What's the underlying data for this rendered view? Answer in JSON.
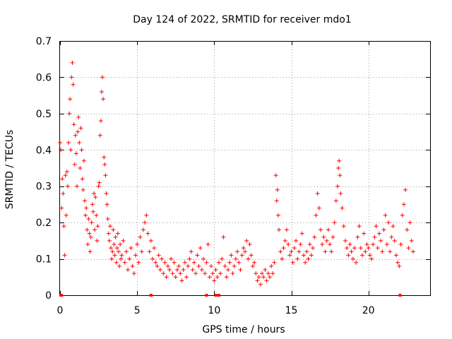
{
  "chart_data": {
    "type": "scatter",
    "title": "Day 124 of 2022, SRMTID for receiver mdo1",
    "xlabel": "GPS time / hours",
    "ylabel": "SRMTID / TECUs",
    "xlim": [
      0,
      24
    ],
    "ylim": [
      0,
      0.7
    ],
    "xticks": [
      0,
      5,
      10,
      15,
      20
    ],
    "yticks": [
      0,
      0.1,
      0.2,
      0.3,
      0.4,
      0.5,
      0.6,
      0.7
    ],
    "x_tick_labels": [
      "0",
      "5",
      "10",
      "15",
      "20"
    ],
    "y_tick_labels": [
      "0",
      "0.1",
      "0.2",
      "0.3",
      "0.4",
      "0.5",
      "0.6",
      "0.7"
    ],
    "grid": true,
    "marker": "plus",
    "marker_color": "#ff0000",
    "zero_points": [
      0.05,
      0.1,
      5.9,
      9.5,
      10.1,
      10.3,
      22.05
    ],
    "series": [
      {
        "name": "SRMTID",
        "points": [
          [
            0.0,
            0.42
          ],
          [
            0.05,
            0.4
          ],
          [
            0.1,
            0.24
          ],
          [
            0.15,
            0.32
          ],
          [
            0.2,
            0.28
          ],
          [
            0.25,
            0.19
          ],
          [
            0.3,
            0.11
          ],
          [
            0.35,
            0.33
          ],
          [
            0.4,
            0.22
          ],
          [
            0.45,
            0.34
          ],
          [
            0.5,
            0.3
          ],
          [
            0.55,
            0.42
          ],
          [
            0.6,
            0.5
          ],
          [
            0.65,
            0.54
          ],
          [
            0.7,
            0.4
          ],
          [
            0.75,
            0.6
          ],
          [
            0.8,
            0.64
          ],
          [
            0.85,
            0.58
          ],
          [
            0.9,
            0.47
          ],
          [
            0.95,
            0.36
          ],
          [
            1.0,
            0.44
          ],
          [
            1.05,
            0.39
          ],
          [
            1.1,
            0.3
          ],
          [
            1.15,
            0.45
          ],
          [
            1.2,
            0.49
          ],
          [
            1.25,
            0.42
          ],
          [
            1.3,
            0.35
          ],
          [
            1.35,
            0.46
          ],
          [
            1.4,
            0.4
          ],
          [
            1.45,
            0.32
          ],
          [
            1.5,
            0.29
          ],
          [
            1.55,
            0.37
          ],
          [
            1.6,
            0.26
          ],
          [
            1.65,
            0.22
          ],
          [
            1.7,
            0.24
          ],
          [
            1.75,
            0.18
          ],
          [
            1.8,
            0.14
          ],
          [
            1.85,
            0.21
          ],
          [
            1.9,
            0.17
          ],
          [
            1.95,
            0.12
          ],
          [
            2.0,
            0.16
          ],
          [
            2.05,
            0.2
          ],
          [
            2.1,
            0.25
          ],
          [
            2.15,
            0.23
          ],
          [
            2.2,
            0.28
          ],
          [
            2.25,
            0.18
          ],
          [
            2.3,
            0.27
          ],
          [
            2.35,
            0.22
          ],
          [
            2.4,
            0.15
          ],
          [
            2.45,
            0.19
          ],
          [
            2.5,
            0.3
          ],
          [
            2.55,
            0.31
          ],
          [
            2.6,
            0.44
          ],
          [
            2.65,
            0.48
          ],
          [
            2.7,
            0.56
          ],
          [
            2.75,
            0.6
          ],
          [
            2.8,
            0.54
          ],
          [
            2.85,
            0.38
          ],
          [
            2.9,
            0.36
          ],
          [
            2.95,
            0.33
          ],
          [
            3.0,
            0.28
          ],
          [
            3.05,
            0.25
          ],
          [
            3.1,
            0.21
          ],
          [
            3.15,
            0.17
          ],
          [
            3.2,
            0.15
          ],
          [
            3.25,
            0.19
          ],
          [
            3.3,
            0.13
          ],
          [
            3.35,
            0.1
          ],
          [
            3.4,
            0.12
          ],
          [
            3.45,
            0.18
          ],
          [
            3.5,
            0.14
          ],
          [
            3.55,
            0.11
          ],
          [
            3.6,
            0.16
          ],
          [
            3.65,
            0.09
          ],
          [
            3.7,
            0.13
          ],
          [
            3.75,
            0.17
          ],
          [
            3.8,
            0.12
          ],
          [
            3.85,
            0.08
          ],
          [
            3.9,
            0.14
          ],
          [
            3.95,
            0.1
          ],
          [
            4.0,
            0.11
          ],
          [
            4.1,
            0.15
          ],
          [
            4.2,
            0.09
          ],
          [
            4.3,
            0.12
          ],
          [
            4.4,
            0.07
          ],
          [
            4.5,
            0.1
          ],
          [
            4.6,
            0.13
          ],
          [
            4.7,
            0.08
          ],
          [
            4.8,
            0.06
          ],
          [
            4.9,
            0.11
          ],
          [
            5.0,
            0.14
          ],
          [
            5.1,
            0.09
          ],
          [
            5.2,
            0.16
          ],
          [
            5.3,
            0.12
          ],
          [
            5.4,
            0.18
          ],
          [
            5.5,
            0.2
          ],
          [
            5.6,
            0.22
          ],
          [
            5.7,
            0.17
          ],
          [
            5.8,
            0.12
          ],
          [
            5.9,
            0.15
          ],
          [
            6.0,
            0.1
          ],
          [
            6.1,
            0.13
          ],
          [
            6.2,
            0.09
          ],
          [
            6.3,
            0.08
          ],
          [
            6.4,
            0.11
          ],
          [
            6.5,
            0.07
          ],
          [
            6.6,
            0.1
          ],
          [
            6.7,
            0.06
          ],
          [
            6.8,
            0.09
          ],
          [
            6.9,
            0.05
          ],
          [
            7.0,
            0.08
          ],
          [
            7.1,
            0.07
          ],
          [
            7.2,
            0.1
          ],
          [
            7.3,
            0.06
          ],
          [
            7.4,
            0.09
          ],
          [
            7.5,
            0.05
          ],
          [
            7.6,
            0.07
          ],
          [
            7.7,
            0.08
          ],
          [
            7.8,
            0.06
          ],
          [
            7.9,
            0.04
          ],
          [
            8.0,
            0.07
          ],
          [
            8.1,
            0.09
          ],
          [
            8.2,
            0.05
          ],
          [
            8.3,
            0.08
          ],
          [
            8.4,
            0.1
          ],
          [
            8.5,
            0.12
          ],
          [
            8.6,
            0.07
          ],
          [
            8.7,
            0.09
          ],
          [
            8.8,
            0.06
          ],
          [
            8.9,
            0.11
          ],
          [
            9.0,
            0.08
          ],
          [
            9.1,
            0.13
          ],
          [
            9.2,
            0.07
          ],
          [
            9.3,
            0.1
          ],
          [
            9.4,
            0.06
          ],
          [
            9.5,
            0.09
          ],
          [
            9.6,
            0.14
          ],
          [
            9.7,
            0.05
          ],
          [
            9.8,
            0.08
          ],
          [
            9.9,
            0.06
          ],
          [
            10.0,
            0.04
          ],
          [
            10.1,
            0.07
          ],
          [
            10.2,
            0.05
          ],
          [
            10.3,
            0.09
          ],
          [
            10.4,
            0.06
          ],
          [
            10.5,
            0.1
          ],
          [
            10.6,
            0.16
          ],
          [
            10.7,
            0.08
          ],
          [
            10.8,
            0.05
          ],
          [
            10.9,
            0.07
          ],
          [
            11.0,
            0.09
          ],
          [
            11.1,
            0.11
          ],
          [
            11.2,
            0.06
          ],
          [
            11.3,
            0.08
          ],
          [
            11.4,
            0.1
          ],
          [
            11.5,
            0.12
          ],
          [
            11.6,
            0.09
          ],
          [
            11.7,
            0.07
          ],
          [
            11.8,
            0.11
          ],
          [
            11.9,
            0.13
          ],
          [
            12.0,
            0.12
          ],
          [
            12.1,
            0.15
          ],
          [
            12.2,
            0.1
          ],
          [
            12.3,
            0.14
          ],
          [
            12.4,
            0.11
          ],
          [
            12.5,
            0.08
          ],
          [
            12.6,
            0.09
          ],
          [
            12.7,
            0.06
          ],
          [
            12.8,
            0.04
          ],
          [
            12.9,
            0.05
          ],
          [
            13.0,
            0.03
          ],
          [
            13.1,
            0.06
          ],
          [
            13.2,
            0.05
          ],
          [
            13.3,
            0.07
          ],
          [
            13.4,
            0.04
          ],
          [
            13.5,
            0.06
          ],
          [
            13.6,
            0.05
          ],
          [
            13.7,
            0.08
          ],
          [
            13.8,
            0.06
          ],
          [
            13.9,
            0.09
          ],
          [
            14.0,
            0.33
          ],
          [
            14.05,
            0.26
          ],
          [
            14.1,
            0.29
          ],
          [
            14.15,
            0.22
          ],
          [
            14.2,
            0.18
          ],
          [
            14.3,
            0.12
          ],
          [
            14.4,
            0.1
          ],
          [
            14.5,
            0.13
          ],
          [
            14.6,
            0.15
          ],
          [
            14.7,
            0.18
          ],
          [
            14.8,
            0.14
          ],
          [
            14.9,
            0.11
          ],
          [
            15.0,
            0.12
          ],
          [
            15.1,
            0.09
          ],
          [
            15.2,
            0.13
          ],
          [
            15.3,
            0.15
          ],
          [
            15.4,
            0.1
          ],
          [
            15.5,
            0.12
          ],
          [
            15.6,
            0.14
          ],
          [
            15.7,
            0.17
          ],
          [
            15.8,
            0.11
          ],
          [
            15.9,
            0.09
          ],
          [
            16.0,
            0.12
          ],
          [
            16.1,
            0.1
          ],
          [
            16.2,
            0.14
          ],
          [
            16.3,
            0.11
          ],
          [
            16.4,
            0.13
          ],
          [
            16.5,
            0.16
          ],
          [
            16.6,
            0.22
          ],
          [
            16.7,
            0.28
          ],
          [
            16.8,
            0.24
          ],
          [
            16.9,
            0.18
          ],
          [
            17.0,
            0.14
          ],
          [
            17.1,
            0.16
          ],
          [
            17.2,
            0.12
          ],
          [
            17.3,
            0.15
          ],
          [
            17.4,
            0.18
          ],
          [
            17.5,
            0.14
          ],
          [
            17.6,
            0.12
          ],
          [
            17.7,
            0.16
          ],
          [
            17.8,
            0.2
          ],
          [
            17.9,
            0.26
          ],
          [
            18.0,
            0.3
          ],
          [
            18.05,
            0.35
          ],
          [
            18.1,
            0.37
          ],
          [
            18.15,
            0.33
          ],
          [
            18.2,
            0.28
          ],
          [
            18.3,
            0.24
          ],
          [
            18.4,
            0.19
          ],
          [
            18.5,
            0.15
          ],
          [
            18.6,
            0.13
          ],
          [
            18.7,
            0.11
          ],
          [
            18.8,
            0.14
          ],
          [
            18.9,
            0.12
          ],
          [
            19.0,
            0.1
          ],
          [
            19.1,
            0.13
          ],
          [
            19.2,
            0.09
          ],
          [
            19.3,
            0.16
          ],
          [
            19.4,
            0.19
          ],
          [
            19.5,
            0.13
          ],
          [
            19.6,
            0.11
          ],
          [
            19.7,
            0.17
          ],
          [
            19.8,
            0.12
          ],
          [
            19.9,
            0.14
          ],
          [
            20.0,
            0.13
          ],
          [
            20.1,
            0.11
          ],
          [
            20.2,
            0.1
          ],
          [
            20.3,
            0.14
          ],
          [
            20.4,
            0.16
          ],
          [
            20.5,
            0.19
          ],
          [
            20.6,
            0.13
          ],
          [
            20.7,
            0.17
          ],
          [
            20.8,
            0.15
          ],
          [
            20.9,
            0.12
          ],
          [
            21.0,
            0.18
          ],
          [
            21.1,
            0.22
          ],
          [
            21.2,
            0.14
          ],
          [
            21.3,
            0.2
          ],
          [
            21.4,
            0.12
          ],
          [
            21.5,
            0.16
          ],
          [
            21.6,
            0.19
          ],
          [
            21.7,
            0.15
          ],
          [
            21.8,
            0.11
          ],
          [
            21.9,
            0.09
          ],
          [
            22.0,
            0.08
          ],
          [
            22.1,
            0.14
          ],
          [
            22.2,
            0.22
          ],
          [
            22.3,
            0.25
          ],
          [
            22.4,
            0.29
          ],
          [
            22.5,
            0.18
          ],
          [
            22.6,
            0.13
          ],
          [
            22.7,
            0.2
          ],
          [
            22.8,
            0.15
          ],
          [
            22.9,
            0.12
          ]
        ]
      }
    ]
  }
}
